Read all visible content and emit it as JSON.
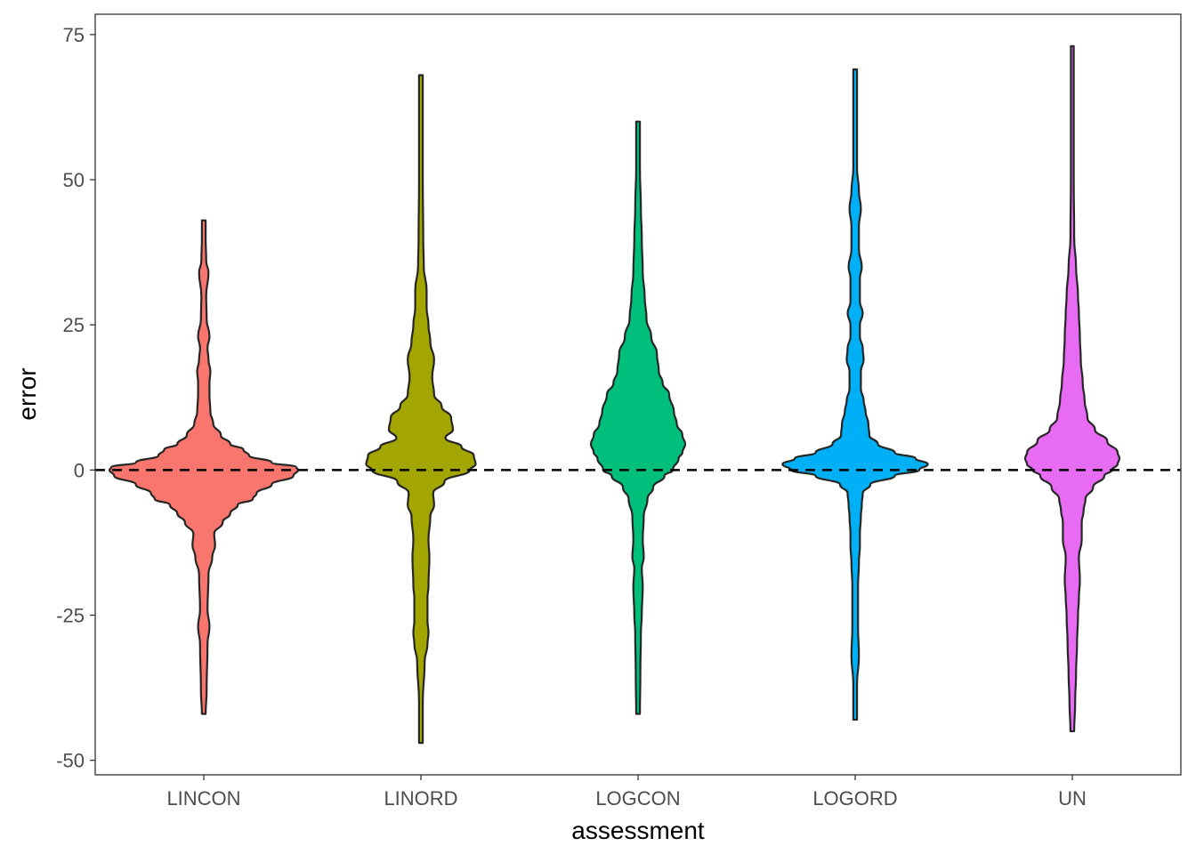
{
  "chart_data": {
    "type": "violin",
    "xlabel": "assessment",
    "ylabel": "error",
    "categories": [
      "LINCON",
      "LINORD",
      "LOGCON",
      "LOGORD",
      "UN"
    ],
    "ylim": [
      -52.5,
      78.5
    ],
    "yticks": [
      -50,
      -25,
      0,
      25,
      50,
      75
    ],
    "ytick_labels": [
      "-50",
      "-25",
      "0",
      "25",
      "50",
      "75"
    ],
    "grid": false,
    "legend": "none",
    "reference_line": {
      "y": 0,
      "style": "dashed",
      "color": "#000000"
    },
    "series": [
      {
        "category": "LINCON",
        "fill": "#F8766D",
        "min": -42,
        "max": 43,
        "profile": [
          [
            -42,
            0.02
          ],
          [
            -38,
            0.03
          ],
          [
            -30,
            0.04
          ],
          [
            -27,
            0.06
          ],
          [
            -24,
            0.04
          ],
          [
            -18,
            0.05
          ],
          [
            -15,
            0.09
          ],
          [
            -13,
            0.12
          ],
          [
            -11,
            0.11
          ],
          [
            -9,
            0.2
          ],
          [
            -7.5,
            0.28
          ],
          [
            -6,
            0.36
          ],
          [
            -5,
            0.52
          ],
          [
            -4,
            0.56
          ],
          [
            -2.5,
            0.72
          ],
          [
            -1,
            0.95
          ],
          [
            0,
            1.0
          ],
          [
            0.5,
            0.98
          ],
          [
            1.3,
            0.72
          ],
          [
            2.5,
            0.48
          ],
          [
            3.5,
            0.42
          ],
          [
            4.5,
            0.28
          ],
          [
            6,
            0.18
          ],
          [
            8,
            0.1
          ],
          [
            10,
            0.07
          ],
          [
            13,
            0.06
          ],
          [
            15,
            0.06
          ],
          [
            17,
            0.07
          ],
          [
            19,
            0.05
          ],
          [
            21,
            0.04
          ],
          [
            23,
            0.06
          ],
          [
            26,
            0.03
          ],
          [
            30,
            0.025
          ],
          [
            34,
            0.05
          ],
          [
            36,
            0.025
          ],
          [
            40,
            0.02
          ],
          [
            43,
            0.02
          ]
        ]
      },
      {
        "category": "LINORD",
        "fill": "#A3A500",
        "min": -47,
        "max": 68,
        "profile": [
          [
            -47,
            0.02
          ],
          [
            -40,
            0.02
          ],
          [
            -33,
            0.04
          ],
          [
            -30,
            0.07
          ],
          [
            -28,
            0.08
          ],
          [
            -26,
            0.07
          ],
          [
            -22,
            0.07
          ],
          [
            -20,
            0.08
          ],
          [
            -15,
            0.09
          ],
          [
            -12,
            0.08
          ],
          [
            -8,
            0.1
          ],
          [
            -6,
            0.14
          ],
          [
            -4,
            0.13
          ],
          [
            -2,
            0.25
          ],
          [
            0,
            0.52
          ],
          [
            1,
            0.58
          ],
          [
            2.5,
            0.56
          ],
          [
            4,
            0.43
          ],
          [
            5.5,
            0.26
          ],
          [
            7,
            0.34
          ],
          [
            9,
            0.32
          ],
          [
            11,
            0.22
          ],
          [
            13,
            0.14
          ],
          [
            16,
            0.12
          ],
          [
            19,
            0.14
          ],
          [
            22,
            0.1
          ],
          [
            25,
            0.08
          ],
          [
            28,
            0.06
          ],
          [
            31,
            0.06
          ],
          [
            35,
            0.03
          ],
          [
            40,
            0.025
          ],
          [
            50,
            0.02
          ],
          [
            60,
            0.02
          ],
          [
            68,
            0.02
          ]
        ]
      },
      {
        "category": "LOGCON",
        "fill": "#00BF7D",
        "min": -42,
        "max": 60,
        "profile": [
          [
            -42,
            0.02
          ],
          [
            -35,
            0.025
          ],
          [
            -28,
            0.03
          ],
          [
            -25,
            0.04
          ],
          [
            -20,
            0.05
          ],
          [
            -17,
            0.04
          ],
          [
            -15,
            0.06
          ],
          [
            -12,
            0.05
          ],
          [
            -8,
            0.06
          ],
          [
            -5,
            0.1
          ],
          [
            -3,
            0.16
          ],
          [
            -1,
            0.28
          ],
          [
            0,
            0.37
          ],
          [
            2,
            0.43
          ],
          [
            3,
            0.47
          ],
          [
            4.5,
            0.5
          ],
          [
            6,
            0.47
          ],
          [
            8,
            0.41
          ],
          [
            10,
            0.38
          ],
          [
            13,
            0.33
          ],
          [
            15,
            0.26
          ],
          [
            17,
            0.22
          ],
          [
            20,
            0.2
          ],
          [
            23,
            0.14
          ],
          [
            26,
            0.09
          ],
          [
            30,
            0.07
          ],
          [
            34,
            0.05
          ],
          [
            40,
            0.04
          ],
          [
            45,
            0.03
          ],
          [
            52,
            0.02
          ],
          [
            60,
            0.02
          ]
        ]
      },
      {
        "category": "LOGORD",
        "fill": "#00B0F6",
        "min": -43,
        "max": 69,
        "profile": [
          [
            -43,
            0.02
          ],
          [
            -37,
            0.02
          ],
          [
            -32,
            0.04
          ],
          [
            -27,
            0.03
          ],
          [
            -20,
            0.03
          ],
          [
            -16,
            0.04
          ],
          [
            -13,
            0.05
          ],
          [
            -11,
            0.05
          ],
          [
            -8,
            0.06
          ],
          [
            -6,
            0.07
          ],
          [
            -4,
            0.08
          ],
          [
            -2.5,
            0.16
          ],
          [
            -1,
            0.42
          ],
          [
            0,
            0.68
          ],
          [
            1,
            0.77
          ],
          [
            2,
            0.64
          ],
          [
            3,
            0.42
          ],
          [
            4.5,
            0.24
          ],
          [
            6,
            0.15
          ],
          [
            8,
            0.14
          ],
          [
            10,
            0.11
          ],
          [
            12,
            0.09
          ],
          [
            14,
            0.06
          ],
          [
            17,
            0.06
          ],
          [
            19,
            0.09
          ],
          [
            21,
            0.08
          ],
          [
            23,
            0.05
          ],
          [
            25,
            0.05
          ],
          [
            27,
            0.08
          ],
          [
            29,
            0.05
          ],
          [
            31,
            0.05
          ],
          [
            33,
            0.05
          ],
          [
            35,
            0.07
          ],
          [
            38,
            0.04
          ],
          [
            42,
            0.04
          ],
          [
            45,
            0.06
          ],
          [
            48,
            0.04
          ],
          [
            52,
            0.02
          ],
          [
            58,
            0.02
          ],
          [
            69,
            0.02
          ]
        ]
      },
      {
        "category": "UN",
        "fill": "#E76BF3",
        "min": -45,
        "max": 73,
        "profile": [
          [
            -45,
            0.02
          ],
          [
            -40,
            0.03
          ],
          [
            -35,
            0.04
          ],
          [
            -30,
            0.05
          ],
          [
            -25,
            0.06
          ],
          [
            -22,
            0.07
          ],
          [
            -19,
            0.08
          ],
          [
            -15,
            0.07
          ],
          [
            -12,
            0.1
          ],
          [
            -9,
            0.1
          ],
          [
            -7,
            0.12
          ],
          [
            -5,
            0.14
          ],
          [
            -3,
            0.22
          ],
          [
            -1,
            0.34
          ],
          [
            0,
            0.42
          ],
          [
            1,
            0.48
          ],
          [
            2,
            0.5
          ],
          [
            3,
            0.48
          ],
          [
            5,
            0.37
          ],
          [
            7,
            0.24
          ],
          [
            9,
            0.16
          ],
          [
            12,
            0.13
          ],
          [
            15,
            0.11
          ],
          [
            19,
            0.09
          ],
          [
            23,
            0.08
          ],
          [
            27,
            0.07
          ],
          [
            30,
            0.06
          ],
          [
            35,
            0.04
          ],
          [
            40,
            0.02
          ],
          [
            50,
            0.015
          ],
          [
            60,
            0.015
          ],
          [
            73,
            0.015
          ]
        ]
      }
    ]
  }
}
